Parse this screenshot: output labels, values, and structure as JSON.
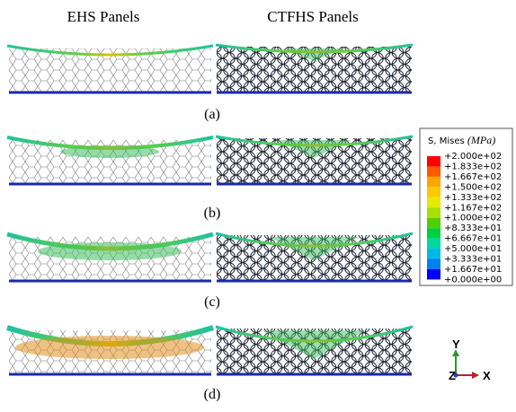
{
  "header": {
    "left": "EHS Panels",
    "right": "CTFHS Panels"
  },
  "rows": [
    {
      "label": "(a)"
    },
    {
      "label": "(b)"
    },
    {
      "label": "(c)"
    },
    {
      "label": "(d)"
    }
  ],
  "legend": {
    "title": "S, Mises",
    "unit": "(MPa)",
    "labels": [
      "+2.000e+02",
      "+1.833e+02",
      "+1.667e+02",
      "+1.500e+02",
      "+1.333e+02",
      "+1.167e+02",
      "+1.000e+02",
      "+8.333e+01",
      "+6.667e+01",
      "+5.000e+01",
      "+3.333e+01",
      "+1.667e+01",
      "+0.000e+00"
    ],
    "colors": [
      "#ff0000",
      "#ff5a00",
      "#ffa500",
      "#ffc800",
      "#e8e800",
      "#a8e000",
      "#50d000",
      "#00d040",
      "#00d8a0",
      "#00b8e8",
      "#0080f0",
      "#0000ff"
    ]
  },
  "triad": {
    "y": "Y",
    "z": "Z",
    "x": "X"
  }
}
